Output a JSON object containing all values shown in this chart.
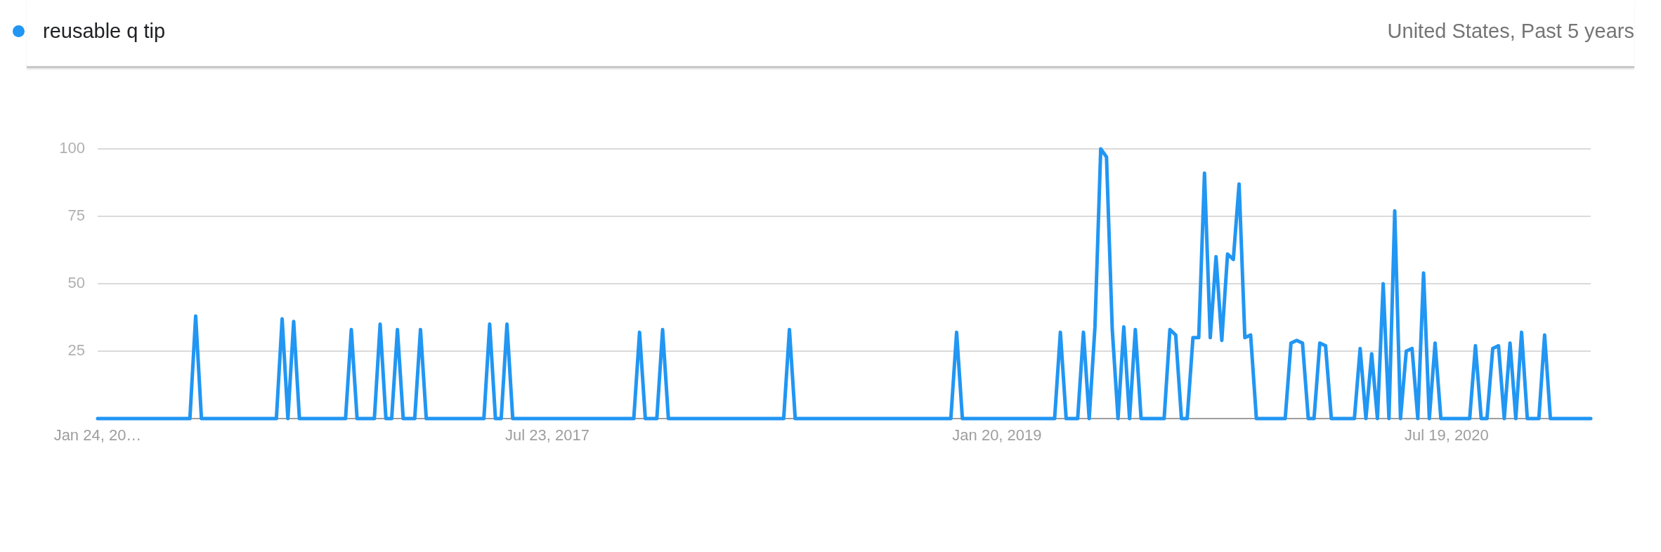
{
  "chart_data": {
    "type": "line",
    "subtitle": "United States, Past 5 years",
    "legend": "top left",
    "grid": "y",
    "marker": "none",
    "line_style": "solid",
    "xlim": [
      "2016-01-24",
      "2021-01-10"
    ],
    "xticks": [
      {
        "value": "2016-01-24",
        "label": "Jan 24, 20…"
      },
      {
        "value": "2017-07-23",
        "label": "Jul 23, 2017"
      },
      {
        "value": "2019-01-20",
        "label": "Jan 20, 2019"
      },
      {
        "value": "2020-07-19",
        "label": "Jul 19, 2020"
      }
    ],
    "ylim": [
      0,
      100
    ],
    "yticks": [
      25,
      50,
      75,
      100
    ],
    "series": [
      {
        "name": "reusable q tip",
        "color": "#2196f3",
        "x": [
          "2016-01-24",
          "2016-05-15",
          "2016-05-22",
          "2016-05-29",
          "2016-08-28",
          "2016-09-04",
          "2016-09-11",
          "2016-09-18",
          "2016-09-25",
          "2016-11-20",
          "2016-11-27",
          "2016-12-04",
          "2016-12-25",
          "2017-01-01",
          "2017-01-08",
          "2017-01-15",
          "2017-01-22",
          "2017-01-29",
          "2017-02-12",
          "2017-02-19",
          "2017-02-26",
          "2017-05-07",
          "2017-05-14",
          "2017-05-21",
          "2017-05-28",
          "2017-06-04",
          "2017-06-11",
          "2017-11-05",
          "2017-11-12",
          "2017-11-19",
          "2017-12-03",
          "2017-12-10",
          "2017-12-17",
          "2018-05-06",
          "2018-05-13",
          "2018-05-20",
          "2018-11-25",
          "2018-12-02",
          "2018-12-09",
          "2019-03-31",
          "2019-04-07",
          "2019-04-14",
          "2019-04-28",
          "2019-05-05",
          "2019-05-12",
          "2019-05-19",
          "2019-05-26",
          "2019-06-02",
          "2019-06-09",
          "2019-06-16",
          "2019-06-23",
          "2019-06-30",
          "2019-07-07",
          "2019-07-14",
          "2019-08-11",
          "2019-08-18",
          "2019-08-25",
          "2019-09-01",
          "2019-09-08",
          "2019-09-15",
          "2019-09-22",
          "2019-09-29",
          "2019-10-06",
          "2019-10-13",
          "2019-10-20",
          "2019-10-27",
          "2019-11-03",
          "2019-11-10",
          "2019-11-17",
          "2019-11-24",
          "2019-12-01",
          "2020-01-05",
          "2020-01-12",
          "2020-01-19",
          "2020-01-26",
          "2020-02-02",
          "2020-02-09",
          "2020-02-16",
          "2020-02-23",
          "2020-03-01",
          "2020-03-29",
          "2020-04-05",
          "2020-04-12",
          "2020-04-19",
          "2020-04-26",
          "2020-05-03",
          "2020-05-10",
          "2020-05-17",
          "2020-05-24",
          "2020-05-31",
          "2020-06-07",
          "2020-06-14",
          "2020-06-21",
          "2020-06-28",
          "2020-07-05",
          "2020-07-12",
          "2020-08-16",
          "2020-08-23",
          "2020-08-30",
          "2020-09-06",
          "2020-09-13",
          "2020-09-20",
          "2020-09-27",
          "2020-10-04",
          "2020-10-11",
          "2020-10-18",
          "2020-10-25",
          "2020-11-08",
          "2020-11-15",
          "2020-11-22",
          "2021-01-10"
        ],
        "values": [
          0,
          0,
          38,
          0,
          0,
          37,
          0,
          36,
          0,
          0,
          33,
          0,
          0,
          35,
          0,
          0,
          33,
          0,
          0,
          33,
          0,
          0,
          35,
          0,
          0,
          35,
          0,
          0,
          32,
          0,
          0,
          33,
          0,
          0,
          33,
          0,
          0,
          32,
          0,
          0,
          32,
          0,
          0,
          32,
          0,
          34,
          100,
          97,
          33,
          0,
          34,
          0,
          33,
          0,
          0,
          33,
          31,
          0,
          0,
          30,
          30,
          91,
          30,
          60,
          29,
          61,
          59,
          87,
          30,
          31,
          0,
          0,
          28,
          29,
          28,
          0,
          0,
          28,
          27,
          0,
          0,
          26,
          0,
          24,
          0,
          50,
          0,
          77,
          0,
          25,
          26,
          0,
          54,
          0,
          28,
          0,
          0,
          27,
          0,
          0,
          26,
          27,
          0,
          28,
          0,
          32,
          0,
          0,
          31,
          0,
          0
        ]
      }
    ]
  }
}
